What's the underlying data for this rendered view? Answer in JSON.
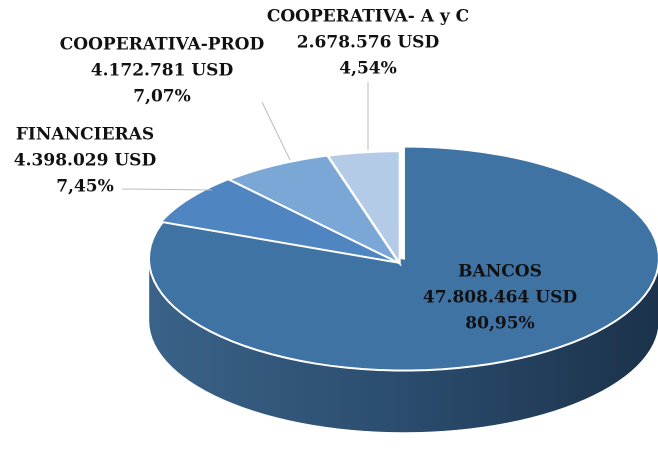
{
  "chart_data": {
    "type": "pie",
    "categories": [
      "BANCOS",
      "FINANCIERAS",
      "COOPERATIVA-PROD",
      "COOPERATIVA- A y C"
    ],
    "values": [
      80.95,
      7.45,
      7.07,
      4.54
    ],
    "value_labels": [
      "80,95%",
      "7,45%",
      "7,07%",
      "4,54%"
    ],
    "amounts": [
      47808464,
      4398029,
      4172781,
      2678576
    ],
    "amount_labels": [
      "47.808.464 USD",
      "4.398.029 USD",
      "4.172.781 USD",
      "2.678.576 USD"
    ],
    "colors": [
      "#3f73a4",
      "#4f86c1",
      "#7ba7d6",
      "#b4cbe8"
    ]
  }
}
